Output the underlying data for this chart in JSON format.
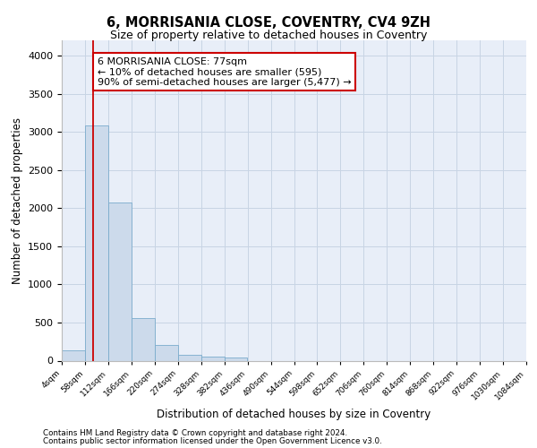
{
  "title": "6, MORRISANIA CLOSE, COVENTRY, CV4 9ZH",
  "subtitle": "Size of property relative to detached houses in Coventry",
  "xlabel": "Distribution of detached houses by size in Coventry",
  "ylabel": "Number of detached properties",
  "footnote1": "Contains HM Land Registry data © Crown copyright and database right 2024.",
  "footnote2": "Contains public sector information licensed under the Open Government Licence v3.0.",
  "bar_color": "#ccdaeb",
  "bar_edge_color": "#7aabcc",
  "grid_color": "#c8d4e4",
  "background_color": "#e8eef8",
  "annotation_box_color": "#cc0000",
  "property_line_color": "#cc0000",
  "property_sqm": 77,
  "annotation_text_line1": "6 MORRISANIA CLOSE: 77sqm",
  "annotation_text_line2": "← 10% of detached houses are smaller (595)",
  "annotation_text_line3": "90% of semi-detached houses are larger (5,477) →",
  "bin_edges": [
    4,
    58,
    112,
    166,
    220,
    274,
    328,
    382,
    436,
    490,
    544,
    598,
    652,
    706,
    760,
    814,
    868,
    922,
    976,
    1030,
    1084
  ],
  "bar_heights": [
    140,
    3080,
    2070,
    560,
    200,
    80,
    50,
    40,
    0,
    0,
    0,
    0,
    0,
    0,
    0,
    0,
    0,
    0,
    0,
    0
  ],
  "ylim": [
    0,
    4200
  ],
  "yticks": [
    0,
    500,
    1000,
    1500,
    2000,
    2500,
    3000,
    3500,
    4000
  ]
}
